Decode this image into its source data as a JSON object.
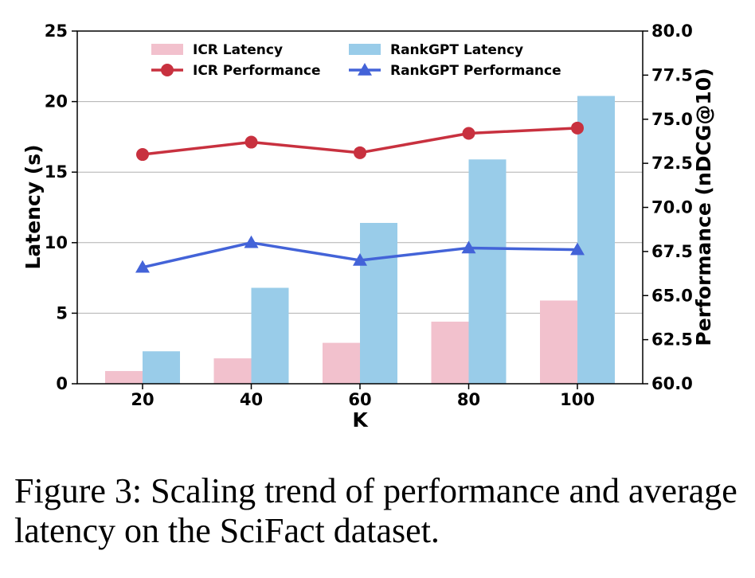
{
  "chart_data": {
    "type": "bar",
    "xlabel": "K",
    "ylabel_left": "Latency (s)",
    "ylabel_right": "Performance (nDCG@10)",
    "categories": [
      "20",
      "40",
      "60",
      "80",
      "100"
    ],
    "left_axis": {
      "ylim": [
        0,
        25
      ],
      "ticks": [
        "0",
        "5",
        "10",
        "15",
        "20",
        "25"
      ],
      "tick_values": [
        0,
        5,
        10,
        15,
        20,
        25
      ]
    },
    "right_axis": {
      "ylim": [
        60,
        80
      ],
      "ticks": [
        "60.0",
        "62.5",
        "65.0",
        "67.5",
        "70.0",
        "72.5",
        "75.0",
        "77.5",
        "80.0"
      ],
      "tick_values": [
        60,
        62.5,
        65,
        67.5,
        70,
        72.5,
        75,
        77.5,
        80
      ]
    },
    "grid": true,
    "legend_position": "top-center",
    "series": [
      {
        "name": "ICR Latency",
        "kind": "bar",
        "axis": "left",
        "color": "#f2c1cd",
        "values": [
          0.9,
          1.8,
          2.9,
          4.4,
          5.9
        ]
      },
      {
        "name": "RankGPT Latency",
        "kind": "bar",
        "axis": "left",
        "color": "#99cce9",
        "values": [
          2.3,
          6.8,
          11.4,
          15.9,
          20.4
        ]
      },
      {
        "name": "ICR Performance",
        "kind": "line",
        "marker": "circle",
        "axis": "right",
        "color": "#c8313f",
        "values": [
          73.0,
          73.7,
          73.1,
          74.2,
          74.5
        ]
      },
      {
        "name": "RankGPT Performance",
        "kind": "line",
        "marker": "triangle",
        "axis": "right",
        "color": "#4363d8",
        "values": [
          66.6,
          68.0,
          67.0,
          67.7,
          67.6
        ]
      }
    ]
  },
  "caption": "Figure 3: Scaling trend of performance and average latency on the SciFact dataset."
}
